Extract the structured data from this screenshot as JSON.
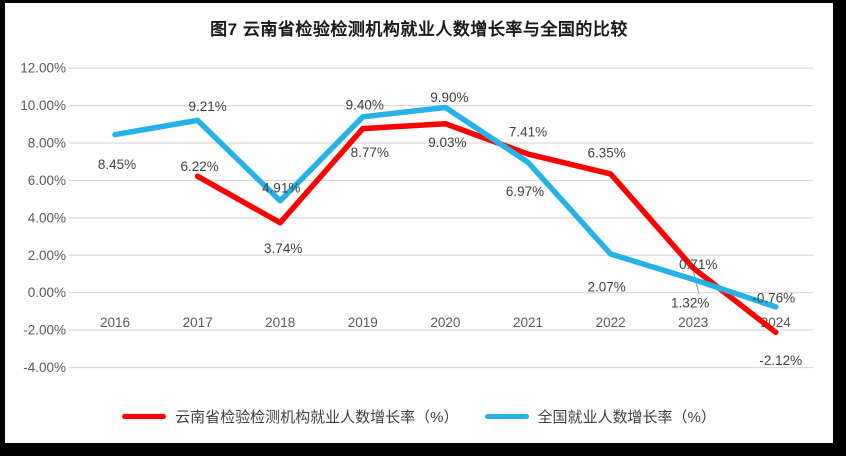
{
  "chart_data": {
    "type": "line",
    "title": "图7  云南省检验检测机构就业人数增长率与全国的比较",
    "categories": [
      "2016",
      "2017",
      "2018",
      "2019",
      "2020",
      "2021",
      "2022",
      "2023",
      "2024"
    ],
    "series": [
      {
        "name": "云南省检验检测机构就业人数增长率（%）",
        "color": "#FF0000",
        "values": [
          null,
          6.22,
          3.74,
          8.77,
          9.03,
          7.41,
          6.35,
          1.32,
          -2.12
        ],
        "labels": [
          null,
          "6.22%",
          "3.74%",
          "8.77%",
          "9.03%",
          "7.41%",
          "6.35%",
          "1.32%",
          "-2.12%"
        ]
      },
      {
        "name": "全国就业人数增长率（%）",
        "color": "#24B2E7",
        "values": [
          8.45,
          9.21,
          4.91,
          9.4,
          9.9,
          6.97,
          2.07,
          0.71,
          -0.76
        ],
        "labels": [
          "8.45%",
          "9.21%",
          "4.91%",
          "9.40%",
          "9.90%",
          "6.97%",
          "2.07%",
          "0.71%",
          "-0.76%"
        ]
      }
    ],
    "y_axis": {
      "max": 12,
      "min": -4,
      "step": 2
    },
    "y_tick_labels": [
      "12.00%",
      "10.00%",
      "8.00%",
      "6.00%",
      "4.00%",
      "2.00%",
      "0.00%",
      "-2.00%",
      "-4.00%"
    ],
    "grid": true,
    "legend_position": "bottom",
    "data_labels": true,
    "colors": {
      "gridline": "#D9D9D9",
      "axis_text": "#595959",
      "data_label_text": "#404040",
      "leader_line": "#A6A6A6",
      "frame": "#000000",
      "background": "#FFFFFF"
    }
  }
}
